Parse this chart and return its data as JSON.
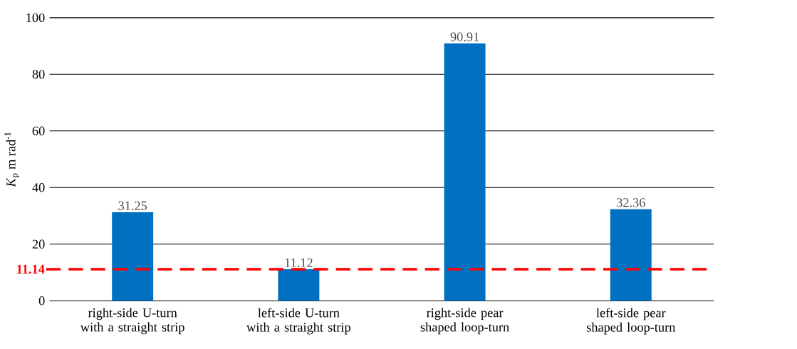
{
  "chart_data": {
    "type": "bar",
    "ylabel": "*K*$_{p}$  m rad$^{-1}$",
    "categories": [
      "right-side U-turn with a straight strip",
      "left-side U-turn with a straight strip",
      "right-side pear shaped loop-turn",
      "left-side pear shaped loop-turn"
    ],
    "values": [
      31.25,
      11.12,
      90.91,
      32.36
    ],
    "color": "#0070c0",
    "data_labels": true,
    "ylim": [
      0,
      100
    ],
    "yticks": [
      0,
      20,
      40,
      60,
      80,
      100
    ],
    "grid": "y",
    "ref_lines": [
      {
        "axis": "y",
        "value": 11.14,
        "label": "11.14",
        "color": "#ff0000",
        "line_style": "dashed"
      }
    ]
  }
}
